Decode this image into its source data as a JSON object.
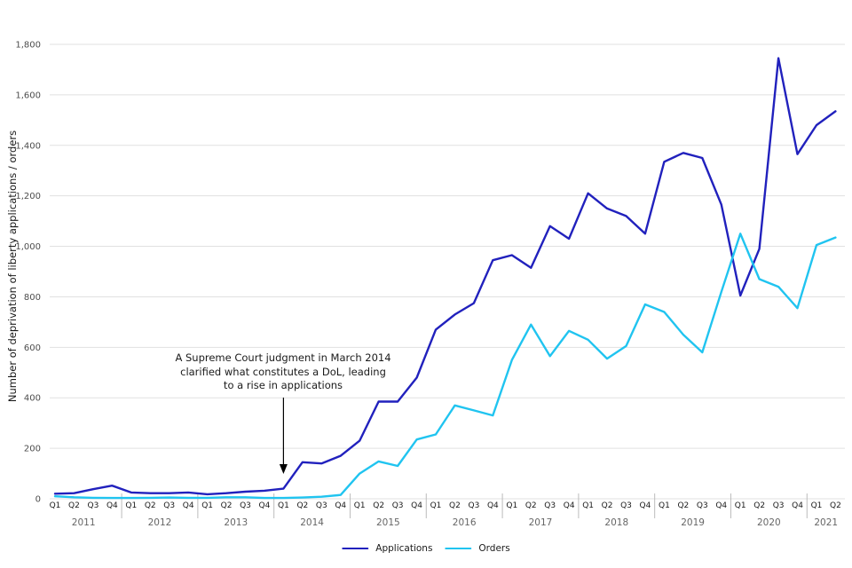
{
  "chart_data": {
    "type": "line",
    "title": "",
    "ylabel": "Number of deprivation of liberty applications / orders",
    "ylim": [
      0,
      1800
    ],
    "ytick_step": 200,
    "ytick_labels": [
      "0",
      "200",
      "400",
      "600",
      "800",
      "1,000",
      "1,200",
      "1,400",
      "1,600",
      "1,800"
    ],
    "grid": "horizontal",
    "legend_position": "bottom-center",
    "x_axis": {
      "years": [
        {
          "label": "2011",
          "quarters": [
            "Q1",
            "Q2",
            "Q3",
            "Q4"
          ]
        },
        {
          "label": "2012",
          "quarters": [
            "Q1",
            "Q2",
            "Q3",
            "Q4"
          ]
        },
        {
          "label": "2013",
          "quarters": [
            "Q1",
            "Q2",
            "Q3",
            "Q4"
          ]
        },
        {
          "label": "2014",
          "quarters": [
            "Q1",
            "Q2",
            "Q3",
            "Q4"
          ]
        },
        {
          "label": "2015",
          "quarters": [
            "Q1",
            "Q2",
            "Q3",
            "Q4"
          ]
        },
        {
          "label": "2016",
          "quarters": [
            "Q1",
            "Q2",
            "Q3",
            "Q4"
          ]
        },
        {
          "label": "2017",
          "quarters": [
            "Q1",
            "Q2",
            "Q3",
            "Q4"
          ]
        },
        {
          "label": "2018",
          "quarters": [
            "Q1",
            "Q2",
            "Q3",
            "Q4"
          ]
        },
        {
          "label": "2019",
          "quarters": [
            "Q1",
            "Q2",
            "Q3",
            "Q4"
          ]
        },
        {
          "label": "2020",
          "quarters": [
            "Q1",
            "Q2",
            "Q3",
            "Q4"
          ]
        },
        {
          "label": "2021",
          "quarters": [
            "Q1",
            "Q2"
          ]
        }
      ]
    },
    "series": [
      {
        "name": "Applications",
        "color": "#2121bd",
        "values": [
          20,
          22,
          38,
          52,
          25,
          22,
          22,
          25,
          18,
          22,
          28,
          32,
          40,
          145,
          140,
          170,
          230,
          385,
          385,
          480,
          670,
          730,
          775,
          945,
          965,
          915,
          1080,
          1030,
          1210,
          1150,
          1120,
          1050,
          1335,
          1370,
          1350,
          1165,
          805,
          990,
          1745,
          1365,
          1480,
          1535
        ]
      },
      {
        "name": "Orders",
        "color": "#20c4f0",
        "values": [
          10,
          6,
          4,
          3,
          3,
          4,
          5,
          4,
          4,
          6,
          6,
          3,
          3,
          5,
          8,
          15,
          100,
          148,
          130,
          235,
          255,
          370,
          350,
          330,
          550,
          690,
          565,
          665,
          630,
          555,
          605,
          770,
          740,
          650,
          580,
          820,
          1050,
          870,
          840,
          755,
          1005,
          1035
        ]
      }
    ],
    "annotation": {
      "line1": "A Supreme Court judgment in March 2014",
      "line2": "clarified what constitutes a DoL, leading",
      "line3": "to a rise in applications",
      "arrow_points_to": "2014 Q1"
    },
    "colors": {
      "gridline": "#e1e1e1",
      "year_separator": "#bcbcbc",
      "tick_text": "#4d4d4d",
      "quarter_text": "#1a1a1a",
      "year_text": "#666666",
      "annotation_arrow": "#000000"
    }
  }
}
